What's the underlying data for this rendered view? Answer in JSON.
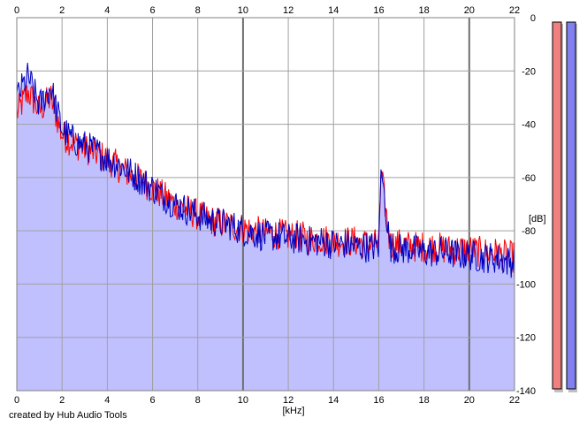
{
  "footer": {
    "credit": "created by Hub Audio Tools"
  },
  "chart_data": {
    "type": "line",
    "xlabel": "[kHz]",
    "ylabel": "[dB]",
    "xlim": [
      0,
      22
    ],
    "ylim": [
      -140,
      0
    ],
    "x_ticks": [
      "0",
      "2",
      "4",
      "6",
      "8",
      "10",
      "12",
      "14",
      "16",
      "18",
      "20",
      "22"
    ],
    "y_ticks": [
      "0",
      "-20",
      "-40",
      "-60",
      "-80",
      "-100",
      "-120",
      "-140"
    ],
    "grid": true,
    "x_axis_labels_top_and_bottom": true,
    "series": [
      {
        "channel": "left",
        "color": "#ff0000",
        "x": [
          0,
          0.5,
          1,
          1.5,
          2,
          2.5,
          3,
          3.5,
          4,
          4.5,
          5,
          5.5,
          6,
          6.5,
          7,
          7.5,
          8,
          8.5,
          9,
          9.5,
          10,
          10.5,
          11,
          11.5,
          12,
          12.5,
          13,
          13.5,
          14,
          14.5,
          15,
          15.5,
          16,
          16.1,
          16.5,
          17,
          17.5,
          18,
          18.5,
          19,
          19.5,
          20,
          20.5,
          21,
          21.5,
          22
        ],
        "values": [
          -36,
          -28,
          -35,
          -30,
          -44,
          -47,
          -49,
          -51,
          -53,
          -56,
          -59,
          -61,
          -64,
          -67,
          -70,
          -72,
          -74,
          -76,
          -77,
          -78,
          -79,
          -80,
          -81,
          -81,
          -82,
          -82,
          -83,
          -83,
          -84,
          -84,
          -84,
          -85,
          -85,
          -58,
          -85,
          -85,
          -86,
          -86,
          -86,
          -87,
          -87,
          -87,
          -88,
          -88,
          -89,
          -90
        ]
      },
      {
        "channel": "right",
        "color": "#0000c0",
        "x": [
          0,
          0.5,
          1,
          1.5,
          2,
          2.5,
          3,
          3.5,
          4,
          4.5,
          5,
          5.5,
          6,
          6.5,
          7,
          7.5,
          8,
          8.5,
          9,
          9.5,
          10,
          10.5,
          11,
          11.5,
          12,
          12.5,
          13,
          13.5,
          14,
          14.5,
          15,
          15.5,
          16,
          16.1,
          16.5,
          17,
          17.5,
          18,
          18.5,
          19,
          19.5,
          20,
          20.5,
          21,
          21.5,
          22
        ],
        "values": [
          -30,
          -22,
          -33,
          -26,
          -42,
          -46,
          -48,
          -50,
          -53,
          -55,
          -58,
          -61,
          -64,
          -67,
          -70,
          -72,
          -74,
          -76,
          -77,
          -78,
          -80,
          -81,
          -82,
          -82,
          -83,
          -83,
          -84,
          -84,
          -85,
          -85,
          -86,
          -86,
          -86,
          -56,
          -86,
          -87,
          -87,
          -88,
          -88,
          -88,
          -89,
          -89,
          -90,
          -90,
          -91,
          -92
        ]
      }
    ],
    "fill_color": "#c0c0ff",
    "level_meters": [
      {
        "channel": "left",
        "color": "#f08080"
      },
      {
        "channel": "right",
        "color": "#8080f0"
      }
    ]
  }
}
